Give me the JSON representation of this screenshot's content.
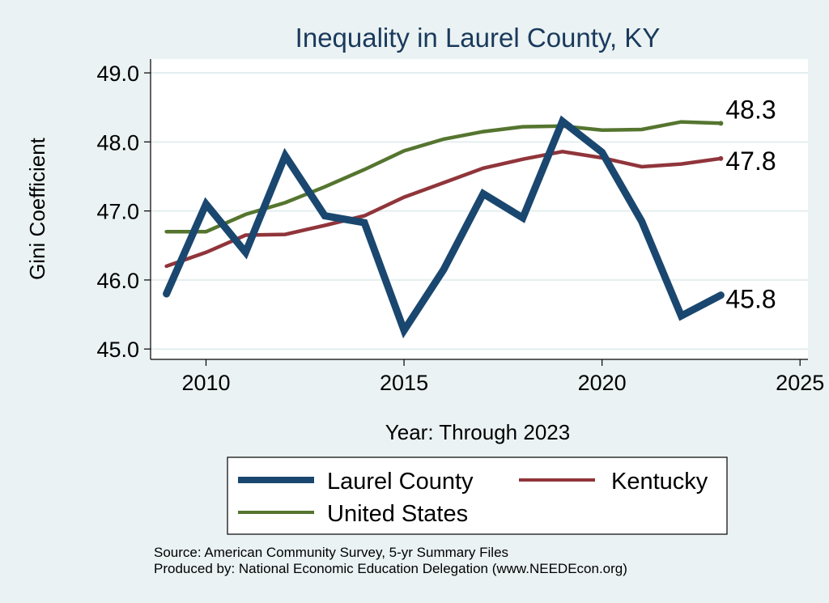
{
  "chart_data": {
    "type": "line",
    "title": "Inequality in Laurel County, KY",
    "xlabel": "Year: Through 2023",
    "ylabel": "Gini Coefficient",
    "xlim": [
      2008.6,
      2025.2
    ],
    "ylim": [
      44.85,
      49.2
    ],
    "x_ticks": [
      2010,
      2015,
      2020,
      2025
    ],
    "y_ticks": [
      45.0,
      46.0,
      47.0,
      48.0,
      49.0
    ],
    "x_tick_labels": [
      "2010",
      "2015",
      "2020",
      "2025"
    ],
    "y_tick_labels": [
      "45.0",
      "46.0",
      "47.0",
      "48.0",
      "49.0"
    ],
    "grid": true,
    "series": [
      {
        "name": "Laurel County",
        "color": "#1a476f",
        "x": [
          2009,
          2010,
          2011,
          2012,
          2013,
          2014,
          2015,
          2016,
          2017,
          2018,
          2019,
          2020,
          2021,
          2022,
          2023
        ],
        "values": [
          45.8,
          47.1,
          46.4,
          47.8,
          46.93,
          46.83,
          45.27,
          46.15,
          47.25,
          46.9,
          48.3,
          47.85,
          46.85,
          45.48,
          45.78
        ],
        "end_label": "45.8"
      },
      {
        "name": "Kentucky",
        "color": "#90353b",
        "x": [
          2009,
          2010,
          2011,
          2012,
          2013,
          2014,
          2015,
          2016,
          2017,
          2018,
          2019,
          2020,
          2021,
          2022,
          2023
        ],
        "values": [
          46.2,
          46.4,
          46.65,
          46.66,
          46.79,
          46.93,
          47.2,
          47.41,
          47.62,
          47.75,
          47.86,
          47.77,
          47.64,
          47.68,
          47.76
        ],
        "end_label": "47.8"
      },
      {
        "name": "United States",
        "color": "#55752f",
        "x": [
          2009,
          2010,
          2011,
          2012,
          2013,
          2014,
          2015,
          2016,
          2017,
          2018,
          2019,
          2020,
          2021,
          2022,
          2023
        ],
        "values": [
          46.7,
          46.7,
          46.95,
          47.12,
          47.35,
          47.6,
          47.87,
          48.04,
          48.15,
          48.22,
          48.23,
          48.17,
          48.18,
          48.29,
          48.27
        ],
        "end_label": "48.3"
      }
    ],
    "legend": {
      "placement": "bottom",
      "entries": [
        "Laurel County",
        "Kentucky",
        "United States"
      ]
    },
    "notes": [
      "Source: American Community Survey, 5-yr Summary Files",
      "Produced by: National Economic Education Delegation (www.NEEDEcon.org)"
    ]
  },
  "colors": {
    "background": "#eaf2f3",
    "plot_background": "#ffffff",
    "title": "#1a3a5c",
    "grid": "#e4eef0"
  }
}
